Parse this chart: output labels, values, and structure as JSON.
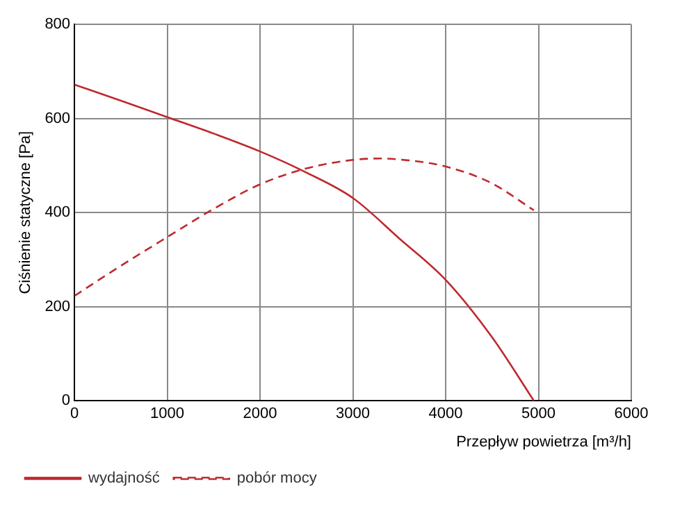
{
  "chart_data": {
    "type": "line",
    "xlabel": "Przepływ powietrza [m³/h]",
    "ylabel": "Ciśnienie statyczne [Pa]",
    "xlim": [
      0,
      6000
    ],
    "xticks": [
      0,
      1000,
      2000,
      3000,
      4000,
      5000,
      6000
    ],
    "ylim": [
      0,
      800
    ],
    "yticks": [
      0,
      200,
      400,
      600,
      800
    ],
    "grid": true,
    "legend": "bottom left",
    "marker": "none",
    "series": [
      {
        "name": "wydajność",
        "color": "#c0282d",
        "line_style": "solid",
        "x": [
          0,
          500,
          1000,
          1500,
          2000,
          2500,
          3000,
          3500,
          4000,
          4500,
          4950
        ],
        "values": [
          672,
          638,
          603,
          568,
          530,
          485,
          431,
          345,
          257,
          135,
          0
        ]
      },
      {
        "name": "pobór mocy",
        "color": "#c0282d",
        "line_style": "dashed",
        "x": [
          0,
          500,
          1000,
          1500,
          2000,
          2500,
          3000,
          3300,
          3500,
          4000,
          4500,
          4950
        ],
        "values": [
          223,
          287,
          348,
          408,
          460,
          494,
          512,
          515,
          513,
          498,
          462,
          405
        ]
      }
    ]
  }
}
